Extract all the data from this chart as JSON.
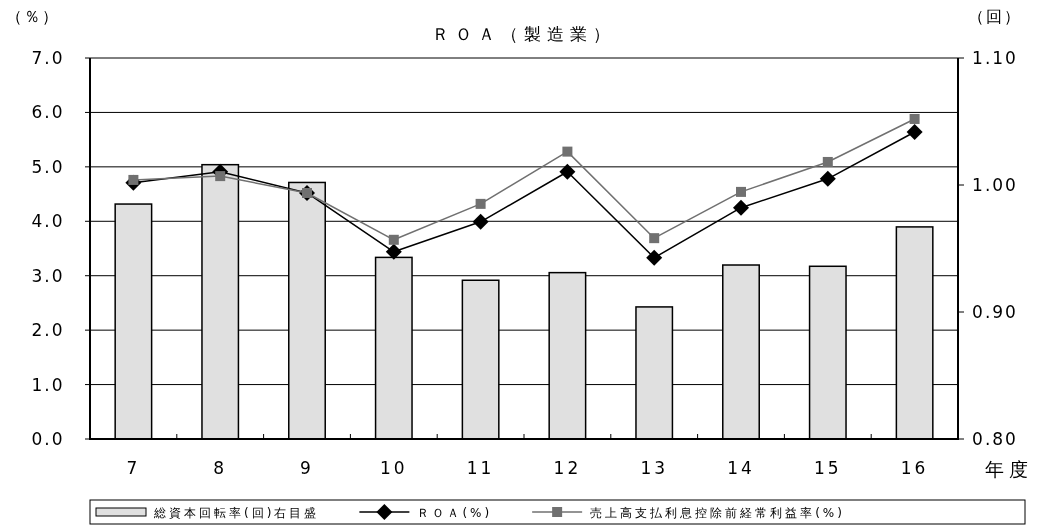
{
  "chart_data": {
    "type": "bar",
    "title": "ＲＯＡ（製造業）",
    "xlabel": "年度",
    "ylabel": "（％）",
    "y2label": "（回）",
    "categories": [
      "7",
      "8",
      "9",
      "10",
      "11",
      "12",
      "13",
      "14",
      "15",
      "16"
    ],
    "series": [
      {
        "name": "総資本回転率(回)右目盛",
        "axis": "y2",
        "color": "#e0e0e0",
        "values": [
          0.985,
          1.016,
          1.002,
          0.943,
          0.925,
          0.931,
          0.904,
          0.937,
          0.936,
          0.967
        ]
      },
      {
        "name": "ＲＯＡ(%)",
        "type": "line",
        "color": "#000000",
        "marker": "diamond",
        "values": [
          4.71,
          4.91,
          4.52,
          3.44,
          3.99,
          4.91,
          3.33,
          4.25,
          4.78,
          5.64
        ]
      },
      {
        "name": "売上高支払利息控除前経常利益率(%)",
        "type": "line",
        "color": "#707070",
        "marker": "square",
        "values": [
          4.76,
          4.83,
          4.52,
          3.66,
          4.32,
          5.28,
          3.69,
          4.54,
          5.09,
          5.88
        ]
      }
    ],
    "ylim": [
      0,
      7
    ],
    "yticks": [
      {
        "value": 0,
        "label": "0.0"
      },
      {
        "value": 1,
        "label": "1.0"
      },
      {
        "value": 2,
        "label": "2.0"
      },
      {
        "value": 3,
        "label": "3.0"
      },
      {
        "value": 4,
        "label": "4.0"
      },
      {
        "value": 5,
        "label": "5.0"
      },
      {
        "value": 6,
        "label": "6.0"
      },
      {
        "value": 7,
        "label": "7.0"
      }
    ],
    "y2lim": [
      0.8,
      1.1
    ],
    "y2ticks": [
      {
        "value": 0.8,
        "label": "0.80"
      },
      {
        "value": 0.9,
        "label": "0.90"
      },
      {
        "value": 1.0,
        "label": "1.00"
      },
      {
        "value": 1.1,
        "label": "1.10"
      }
    ],
    "grid": "y",
    "legend": "bottom",
    "line_style": "solid"
  }
}
